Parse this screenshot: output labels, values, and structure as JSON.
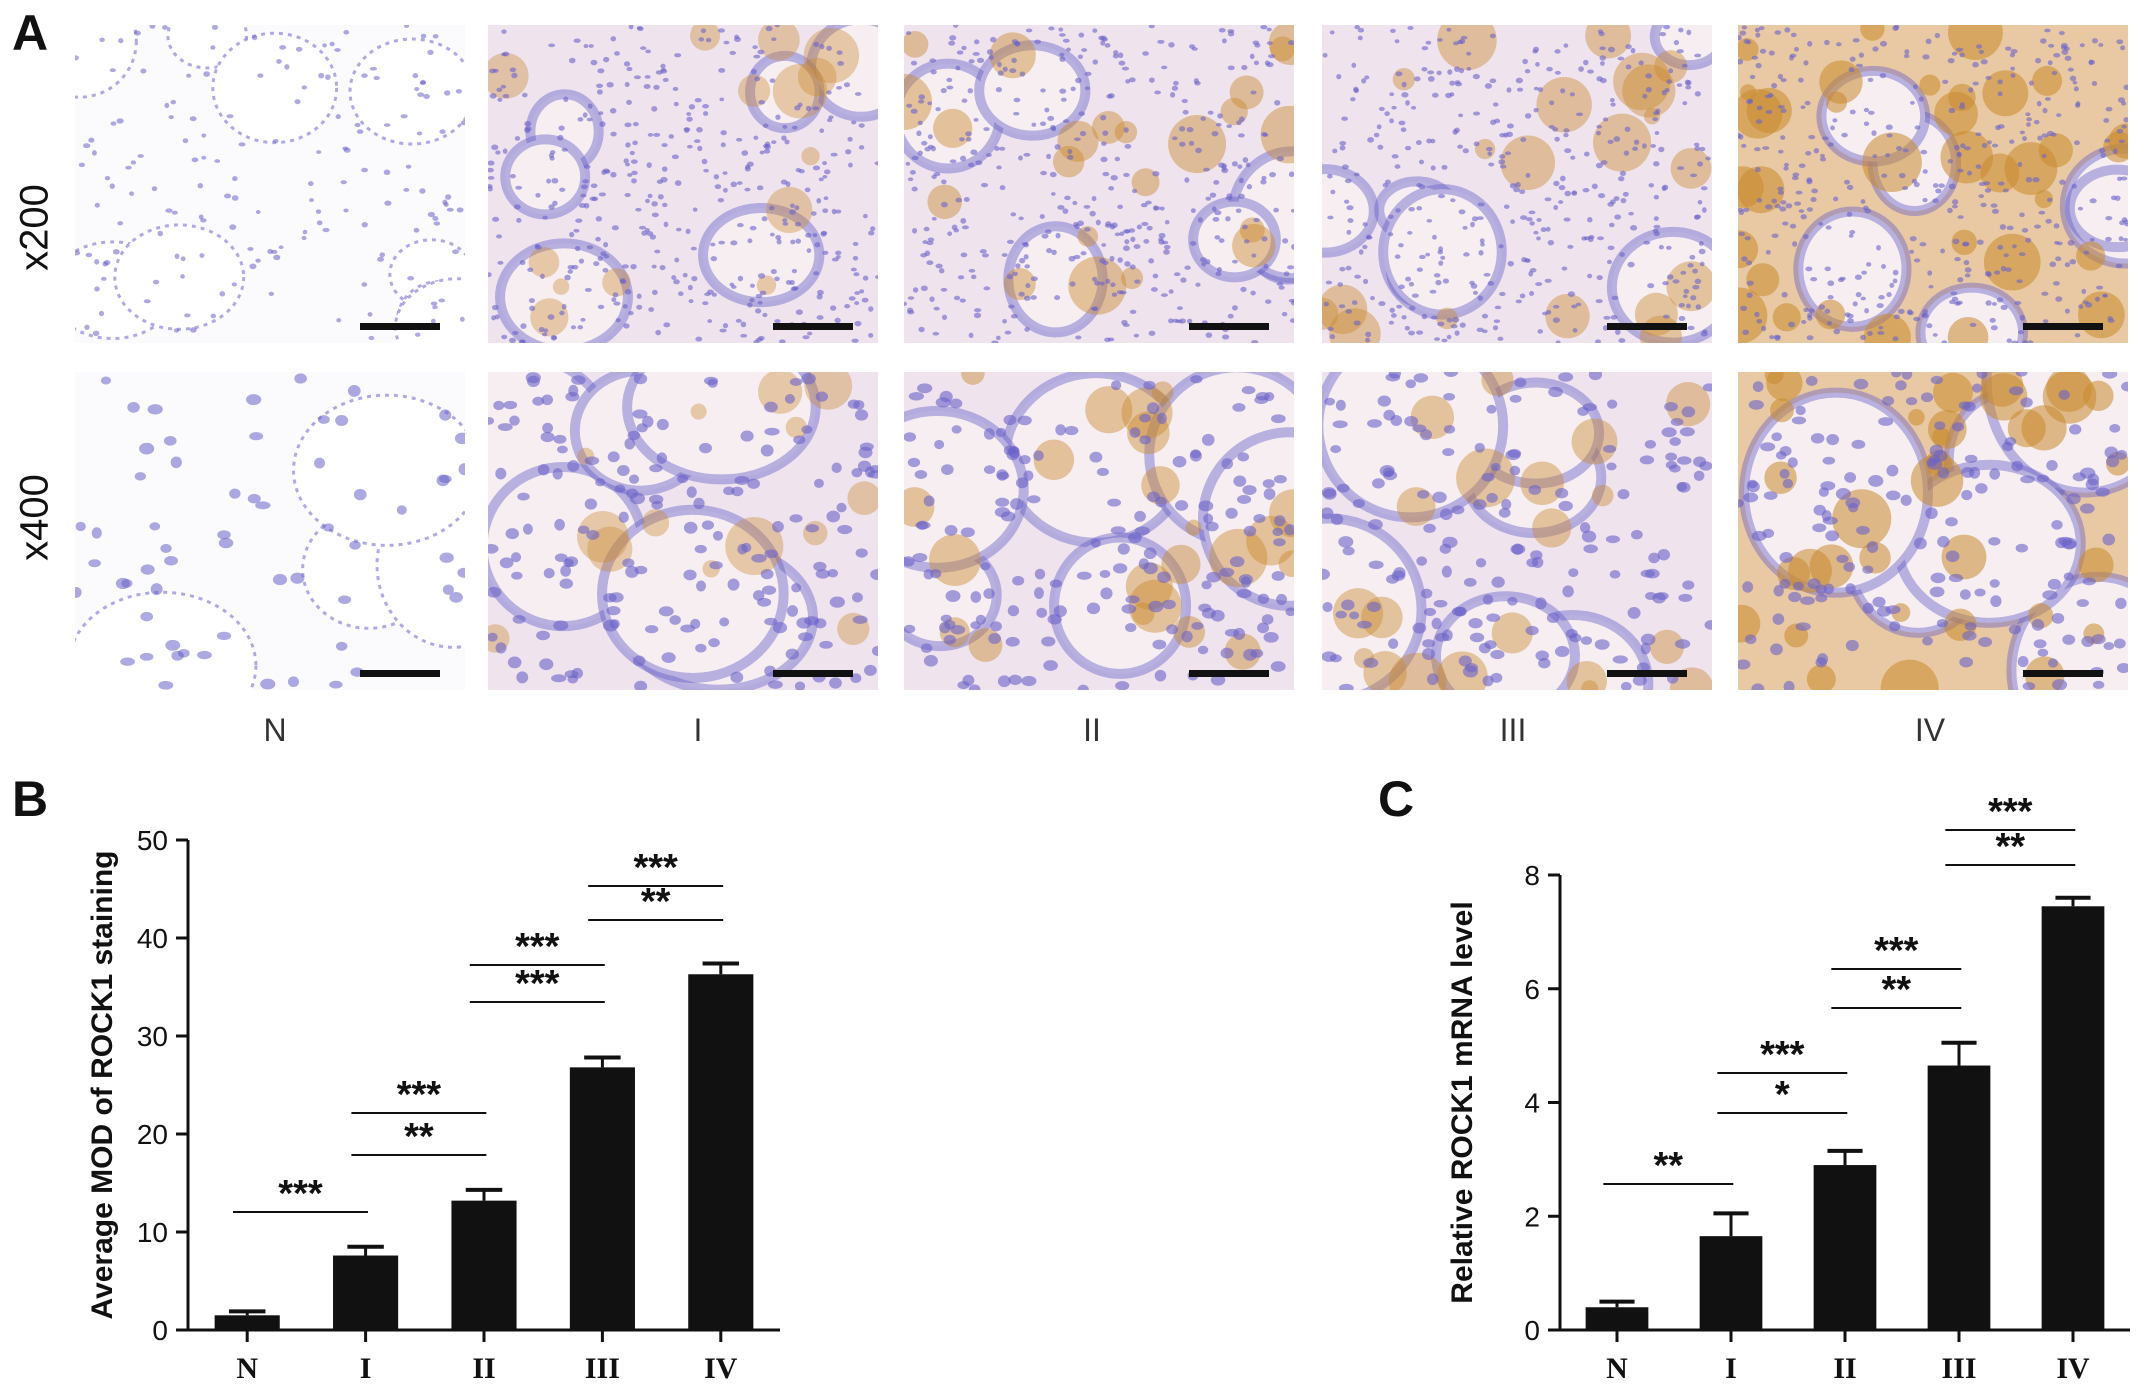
{
  "panel_letters": {
    "a": "A",
    "b": "B",
    "c": "C"
  },
  "panel_a": {
    "row_labels": [
      "x200",
      "x400"
    ],
    "column_labels": [
      "N",
      "I",
      "II",
      "III",
      "IV"
    ],
    "stain_intensity": [
      0.0,
      0.35,
      0.55,
      0.5,
      0.85
    ],
    "colors": {
      "hematoxylin": "#6a63c8",
      "dab": "#c98a2e",
      "background": "#f7f3f8",
      "scale_bar": "#111111"
    }
  },
  "chart_data": [
    {
      "type": "bar",
      "ylabel": "Average MOD of ROCK1 staining",
      "categories": [
        "N",
        "I",
        "II",
        "III",
        "IV"
      ],
      "values": [
        1.5,
        7.6,
        13.2,
        26.8,
        36.3
      ],
      "errors": [
        0.4,
        0.9,
        1.1,
        1.0,
        1.1
      ],
      "ylim": [
        0,
        50
      ],
      "yticks": [
        "0",
        "10",
        "20",
        "30",
        "40",
        "50"
      ],
      "significance": [
        {
          "from": 0,
          "to": 1,
          "label": "***"
        },
        {
          "from": 1,
          "to": 2,
          "label": "**"
        },
        {
          "from": 1,
          "to": 2,
          "label": "***"
        },
        {
          "from": 2,
          "to": 3,
          "label": "***"
        },
        {
          "from": 2,
          "to": 3,
          "label": "***"
        },
        {
          "from": 3,
          "to": 4,
          "label": "**"
        },
        {
          "from": 3,
          "to": 4,
          "label": "***"
        }
      ],
      "bar_color": "#111111"
    },
    {
      "type": "bar",
      "ylabel": "Relative ROCK1 mRNA level",
      "categories": [
        "N",
        "I",
        "II",
        "III",
        "IV"
      ],
      "values": [
        0.4,
        1.65,
        2.9,
        4.65,
        7.45
      ],
      "errors": [
        0.1,
        0.4,
        0.25,
        0.4,
        0.15
      ],
      "ylim": [
        0,
        8
      ],
      "yticks": [
        "0",
        "2",
        "4",
        "6",
        "8"
      ],
      "significance": [
        {
          "from": 0,
          "to": 1,
          "label": "**"
        },
        {
          "from": 1,
          "to": 2,
          "label": "*"
        },
        {
          "from": 1,
          "to": 2,
          "label": "***"
        },
        {
          "from": 2,
          "to": 3,
          "label": "**"
        },
        {
          "from": 2,
          "to": 3,
          "label": "***"
        },
        {
          "from": 3,
          "to": 4,
          "label": "**"
        },
        {
          "from": 3,
          "to": 4,
          "label": "***"
        }
      ],
      "bar_color": "#111111"
    }
  ]
}
